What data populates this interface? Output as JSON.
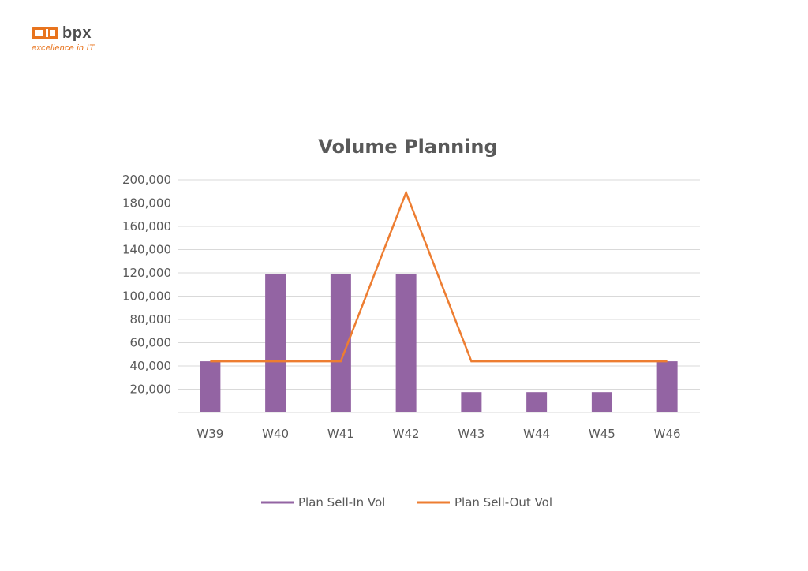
{
  "brand": {
    "name": "bpx",
    "tagline": "excellence in IT",
    "accent": "#e8741e"
  },
  "chart_data": {
    "type": "bar",
    "title": "Volume Planning",
    "categories": [
      "W39",
      "W40",
      "W41",
      "W42",
      "W43",
      "W44",
      "W45",
      "W46"
    ],
    "series": [
      {
        "name": "Plan Sell-In Vol",
        "kind": "bar",
        "color": "#9364a3",
        "values": [
          44000,
          119000,
          119000,
          119000,
          17500,
          17500,
          17500,
          44000
        ]
      },
      {
        "name": "Plan Sell-Out Vol",
        "kind": "line",
        "color": "#ed7d31",
        "values": [
          44000,
          44000,
          44000,
          189000,
          44000,
          44000,
          44000,
          44000
        ]
      }
    ],
    "ylim": [
      0,
      200000
    ],
    "yticks": [
      "20,000",
      "40,000",
      "60,000",
      "80,000",
      "100,000",
      "120,000",
      "140,000",
      "160,000",
      "180,000",
      "200,000"
    ],
    "ytick_values": [
      20000,
      40000,
      60000,
      80000,
      100000,
      120000,
      140000,
      160000,
      180000,
      200000
    ],
    "grid": true,
    "legend_position": "bottom"
  }
}
